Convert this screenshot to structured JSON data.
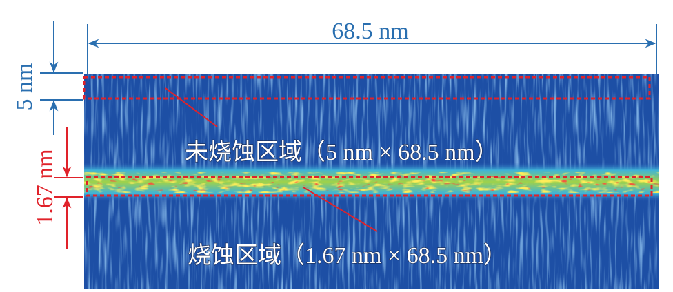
{
  "dimensions": {
    "width": "68.5 nm",
    "unablated_height": "5 nm",
    "ablated_height": "1.67 nm"
  },
  "labels": {
    "unablated": "未烧蚀区域（5 nm × 68.5 nm）",
    "ablated": "烧蚀区域（1.67 nm × 68.5 nm）"
  }
}
